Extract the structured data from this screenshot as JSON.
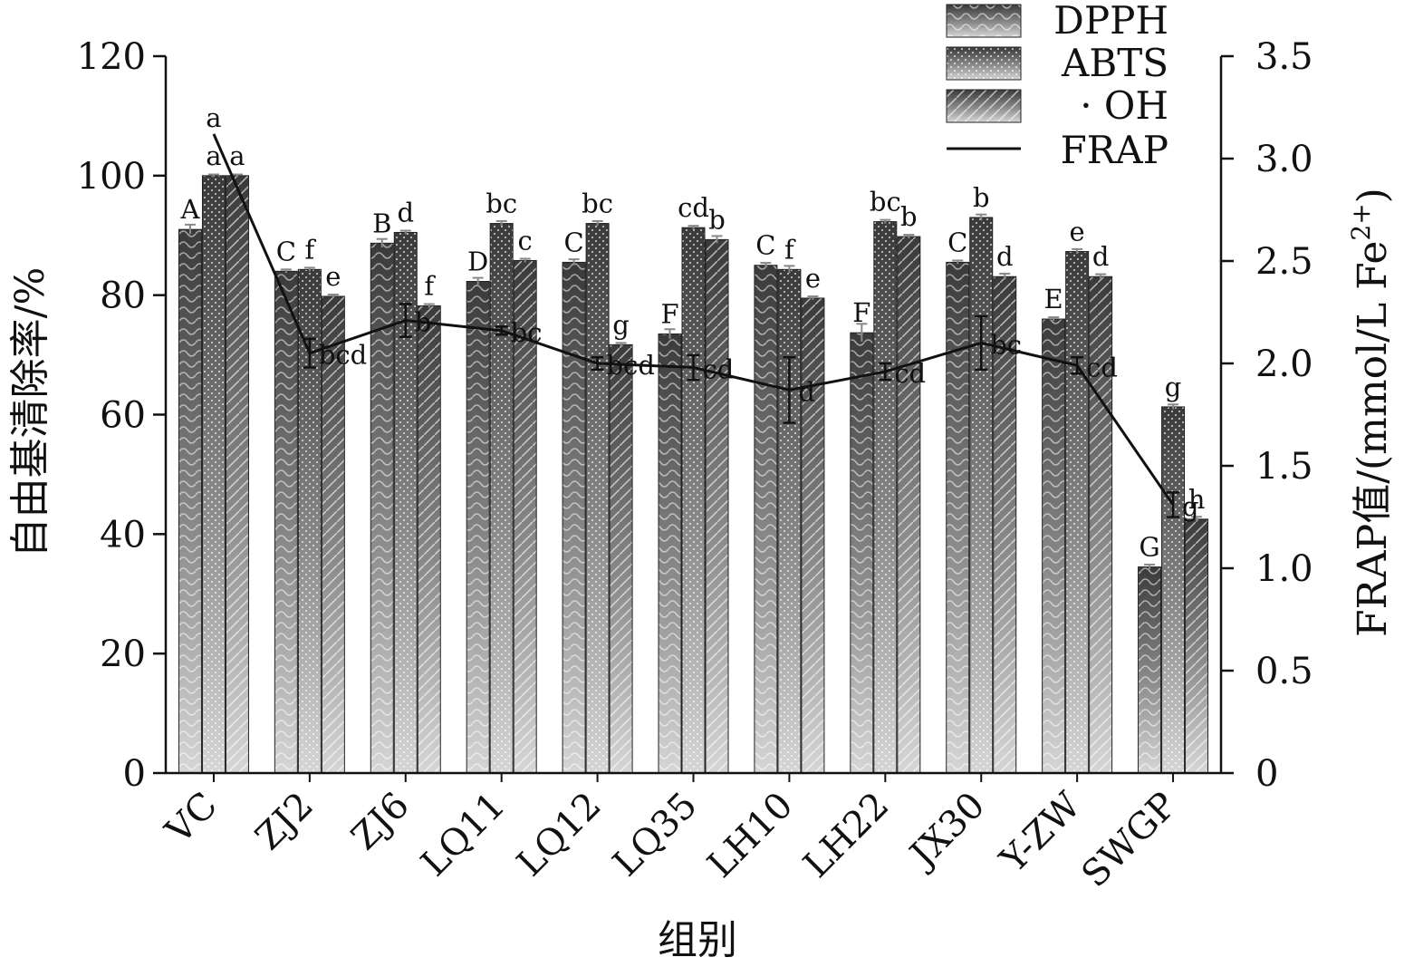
{
  "chart_data": {
    "type": "bar",
    "xlabel": "组别",
    "ylabel": "自由基清除率/%",
    "y2label_main": "FRAP值/(mmol/L Fe",
    "y2label_sup": "2+",
    "y2label_end": ")",
    "ylim": [
      0,
      120
    ],
    "y2lim": [
      0,
      3.5
    ],
    "yticks": [
      "0",
      "20",
      "40",
      "60",
      "80",
      "100",
      "120"
    ],
    "y2ticks": [
      "0",
      "0.5",
      "1.0",
      "1.5",
      "2.0",
      "2.5",
      "3.0",
      "3.5"
    ],
    "categories": [
      "VC",
      "ZJ2",
      "ZJ6",
      "LQ11",
      "LQ12",
      "LQ35",
      "LH10",
      "LH22",
      "JX30",
      "Y-ZW",
      "SWGP"
    ],
    "legend_position": "top-right",
    "series": [
      {
        "name": "DPPH",
        "color": "#3a3a3a",
        "pattern": "wave",
        "values": [
          91.0,
          84.0,
          88.7,
          82.3,
          85.5,
          73.5,
          85.0,
          73.7,
          85.5,
          76.0,
          34.5
        ],
        "errors": [
          0.8,
          0.3,
          0.7,
          0.6,
          0.5,
          0.8,
          0.4,
          1.5,
          0.3,
          0.3,
          0.4
        ],
        "letters": [
          "A",
          "C",
          "B",
          "D",
          "C",
          "F",
          "C",
          "F",
          "C",
          "E",
          "G"
        ]
      },
      {
        "name": "ABTS",
        "color": "#3f3f3f",
        "pattern": "dots",
        "values": [
          100.0,
          84.3,
          90.5,
          92.0,
          92.0,
          91.3,
          84.3,
          92.3,
          93.0,
          87.3,
          61.3
        ],
        "errors": [
          0.2,
          0.3,
          0.3,
          0.4,
          0.4,
          0.3,
          0.6,
          0.3,
          0.5,
          0.4,
          0.4
        ],
        "letters": [
          "a",
          "f",
          "d",
          "bc",
          "bc",
          "cd",
          "f",
          "bc",
          "b",
          "e",
          "g"
        ]
      },
      {
        "name": "· OH",
        "color": "#454545",
        "pattern": "hatch",
        "values": [
          100.0,
          79.8,
          78.2,
          85.8,
          71.7,
          89.3,
          79.5,
          89.8,
          83.1,
          83.1,
          42.5
        ],
        "errors": [
          0.2,
          0.3,
          0.3,
          0.3,
          0.3,
          0.6,
          0.3,
          0.3,
          0.5,
          0.4,
          0.4
        ],
        "letters": [
          "a",
          "e",
          "f",
          "c",
          "g",
          "b",
          "e",
          "b",
          "d",
          "d",
          "h"
        ]
      }
    ],
    "line_series": {
      "name": "FRAP",
      "axis": "right",
      "values": [
        3.12,
        2.05,
        2.21,
        2.16,
        2.0,
        1.98,
        1.87,
        1.96,
        2.1,
        1.99,
        1.31
      ],
      "errors": [
        0.0,
        0.07,
        0.08,
        0.02,
        0.03,
        0.06,
        0.16,
        0.04,
        0.13,
        0.04,
        0.06
      ],
      "letters": [
        "a",
        "bcd",
        "b",
        "bc",
        "bcd",
        "cd",
        "d",
        "cd",
        "bc",
        "cd",
        "g"
      ]
    }
  }
}
